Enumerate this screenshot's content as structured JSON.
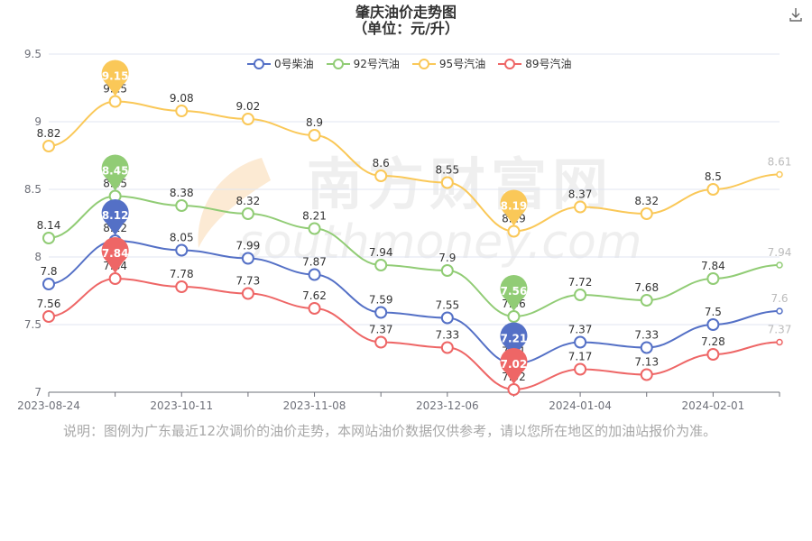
{
  "title": "肇庆油价走势图",
  "subtitle": "（单位：元/升）",
  "watermark": {
    "line1": "南方财富网",
    "line2": "southmoney.com"
  },
  "icons": {
    "download": "download-icon"
  },
  "note": "说明：图例为广东最近12次调价的油价走势，本网站油价数据仅供参考，请以您所在地区的加油站报价为准。",
  "chart_data": {
    "type": "line",
    "x_labels": [
      "2023-08-24",
      "",
      "2023-10-11",
      "",
      "2023-11-08",
      "",
      "2023-12-06",
      "",
      "2024-01-04",
      "",
      "2024-02-01",
      ""
    ],
    "ylim": [
      7,
      9.5
    ],
    "yticks": [
      7,
      7.5,
      8,
      8.5,
      9,
      9.5
    ],
    "legend_position": "top-center",
    "series": [
      {
        "name": "0号柴油",
        "color": "#5470c6",
        "values": [
          7.8,
          8.12,
          8.05,
          7.99,
          7.87,
          7.59,
          7.55,
          7.21,
          7.37,
          7.33,
          7.5,
          7.6
        ],
        "max_index": 1,
        "min_index": 7
      },
      {
        "name": "92号汽油",
        "color": "#91cc75",
        "values": [
          8.14,
          8.45,
          8.38,
          8.32,
          8.21,
          7.94,
          7.9,
          7.56,
          7.72,
          7.68,
          7.84,
          7.94
        ],
        "max_index": 1,
        "min_index": 7
      },
      {
        "name": "95号汽油",
        "color": "#fac858",
        "values": [
          8.82,
          9.15,
          9.08,
          9.02,
          8.9,
          8.6,
          8.55,
          8.19,
          8.37,
          8.32,
          8.5,
          8.61
        ],
        "max_index": 1,
        "min_index": 7
      },
      {
        "name": "89号汽油",
        "color": "#ee6666",
        "values": [
          7.56,
          7.84,
          7.78,
          7.73,
          7.62,
          7.37,
          7.33,
          7.02,
          7.17,
          7.13,
          7.28,
          7.37
        ],
        "max_index": 1,
        "min_index": 7
      }
    ]
  }
}
